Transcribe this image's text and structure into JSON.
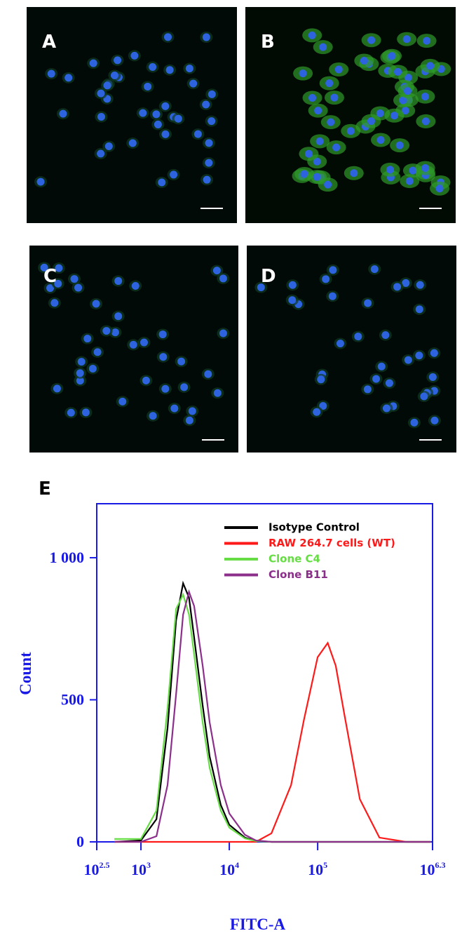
{
  "panels": [
    "A",
    "B",
    "C",
    "D"
  ],
  "chart_data": {
    "type": "line",
    "panel_label": "E",
    "x_label": "FITC-A",
    "y_label": "Count",
    "log_scale_x": true,
    "xlim": [
      316.2,
      1995262
    ],
    "xticks": [
      {
        "value": 316.2,
        "label": "10",
        "superscript": "2.5"
      },
      {
        "value": 1000,
        "label": "10",
        "superscript": "3"
      },
      {
        "value": 10000,
        "label": "10",
        "superscript": "4"
      },
      {
        "value": 100000,
        "label": "10",
        "superscript": "5"
      },
      {
        "value": 1995262,
        "label": "10",
        "superscript": "6.3"
      }
    ],
    "ylim": [
      0,
      1190
    ],
    "yticks": [
      0,
      500,
      {
        "value": 1000,
        "label": "1 000"
      }
    ],
    "axis_color": "#1a1ae6",
    "legend_position": "upper right",
    "x": [
      500,
      1000,
      1500,
      2000,
      2500,
      3000,
      3500,
      4000,
      5000,
      6000,
      8000,
      10000,
      15000,
      20000,
      30000,
      50000,
      70000,
      100000,
      130000,
      160000,
      200000,
      300000,
      500000,
      1000000,
      1900000
    ],
    "series": [
      {
        "name": "Isotype Control",
        "color": "#000000",
        "values": [
          0,
          5,
          80,
          400,
          780,
          910,
          860,
          720,
          480,
          300,
          130,
          60,
          15,
          3,
          0,
          0,
          0,
          0,
          0,
          0,
          0,
          0,
          0,
          0,
          0
        ]
      },
      {
        "name": "RAW 264.7 cells (WT)",
        "color": "#ff1a1a",
        "values": [
          0,
          0,
          0,
          0,
          0,
          0,
          0,
          0,
          0,
          0,
          0,
          0,
          0,
          0,
          30,
          200,
          430,
          650,
          700,
          620,
          450,
          150,
          15,
          0,
          0
        ]
      },
      {
        "name": "Clone C4",
        "color": "#66dd44",
        "values": [
          10,
          10,
          110,
          470,
          820,
          870,
          800,
          660,
          420,
          260,
          110,
          50,
          12,
          3,
          0,
          0,
          0,
          0,
          0,
          0,
          0,
          0,
          0,
          0,
          0
        ]
      },
      {
        "name": "Clone B11",
        "color": "#8b2f8b",
        "values": [
          0,
          0,
          20,
          200,
          520,
          800,
          880,
          830,
          620,
          420,
          200,
          100,
          25,
          5,
          0,
          0,
          0,
          0,
          0,
          0,
          0,
          0,
          0,
          0,
          0
        ]
      }
    ]
  }
}
